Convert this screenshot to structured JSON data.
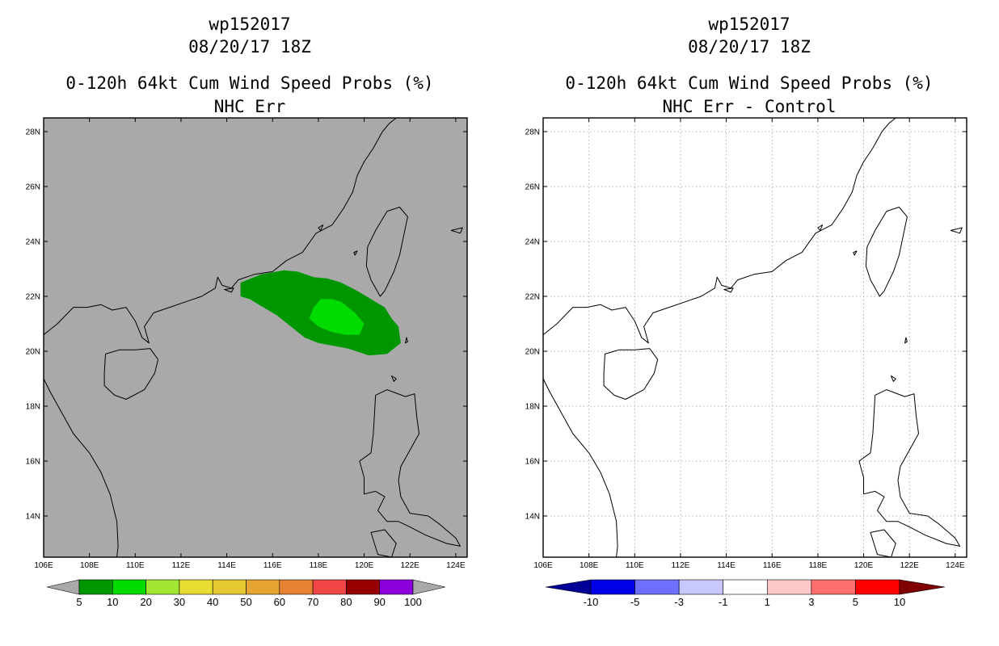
{
  "left": {
    "titles": [
      "wp152017",
      "08/20/17 18Z",
      "0-120h 64kt Cum Wind Speed Probs (%)",
      "NHC Err"
    ],
    "colorbar": {
      "colors": [
        "#009600",
        "#00dc00",
        "#a0e632",
        "#e6dc32",
        "#e6c832",
        "#e6a532",
        "#e68232",
        "#f04646",
        "#960000",
        "#8c00dc"
      ],
      "under_color": "#a9a9a9",
      "over_color": "#a9a9a9",
      "labels": [
        "5",
        "10",
        "20",
        "30",
        "40",
        "50",
        "60",
        "70",
        "80",
        "90",
        "100"
      ]
    }
  },
  "right": {
    "titles": [
      "wp152017",
      "08/20/17 18Z",
      "0-120h 64kt Cum Wind Speed Probs (%)",
      "NHC Err - Control"
    ],
    "colorbar": {
      "colors": [
        "#0000e6",
        "#6e6eff",
        "#c8c8ff",
        "#ffffff",
        "#ffc8c8",
        "#ff6e6e",
        "#ff0000"
      ],
      "under_color": "#000096",
      "over_color": "#800000",
      "labels": [
        "-10",
        "-5",
        "-3",
        "-1",
        "1",
        "3",
        "5",
        "10"
      ]
    }
  },
  "map": {
    "lon_min": 106,
    "lon_max": 124.5,
    "lat_min": 12.5,
    "lat_max": 28.5,
    "lon_ticks": [
      "106E",
      "108E",
      "110E",
      "112E",
      "114E",
      "116E",
      "118E",
      "120E",
      "122E",
      "124E"
    ],
    "lat_ticks": [
      "14N",
      "16N",
      "18N",
      "20N",
      "22N",
      "24N",
      "26N",
      "28N"
    ],
    "left_background": "#a9a9a9",
    "right_background": "#ffffff",
    "gridline_color": "#a0a0a0"
  },
  "probability_shading": {
    "outer_5pct_lonlat": [
      [
        114.6,
        22.5
      ],
      [
        115.5,
        22.8
      ],
      [
        116.5,
        22.95
      ],
      [
        117.1,
        22.9
      ],
      [
        117.8,
        22.7
      ],
      [
        118.4,
        22.65
      ],
      [
        119.0,
        22.5
      ],
      [
        119.7,
        22.2
      ],
      [
        120.3,
        21.9
      ],
      [
        120.9,
        21.6
      ],
      [
        121.2,
        21.2
      ],
      [
        121.5,
        20.9
      ],
      [
        121.6,
        20.3
      ],
      [
        121.0,
        19.9
      ],
      [
        120.2,
        19.85
      ],
      [
        119.3,
        20.1
      ],
      [
        118.0,
        20.3
      ],
      [
        117.4,
        20.5
      ],
      [
        116.8,
        20.9
      ],
      [
        116.2,
        21.3
      ],
      [
        115.6,
        21.6
      ],
      [
        115.0,
        21.9
      ],
      [
        114.6,
        22.0
      ]
    ],
    "inner_10pct_lonlat": [
      [
        118.1,
        21.9
      ],
      [
        118.6,
        21.9
      ],
      [
        119.0,
        21.8
      ],
      [
        119.6,
        21.4
      ],
      [
        120.0,
        21.0
      ],
      [
        119.8,
        20.6
      ],
      [
        119.2,
        20.6
      ],
      [
        118.6,
        20.7
      ],
      [
        118.0,
        20.9
      ],
      [
        117.6,
        21.2
      ],
      [
        117.8,
        21.6
      ]
    ]
  },
  "coastlines_lonlat": {
    "china_coast": [
      [
        106.0,
        20.6
      ],
      [
        106.6,
        21.0
      ],
      [
        107.3,
        21.6
      ],
      [
        107.9,
        21.6
      ],
      [
        108.5,
        21.7
      ],
      [
        109.0,
        21.5
      ],
      [
        109.6,
        21.6
      ],
      [
        110.0,
        21.1
      ],
      [
        110.3,
        20.5
      ],
      [
        110.6,
        20.3
      ],
      [
        110.4,
        20.9
      ],
      [
        110.8,
        21.4
      ],
      [
        111.5,
        21.6
      ],
      [
        112.2,
        21.8
      ],
      [
        112.9,
        22.0
      ],
      [
        113.5,
        22.3
      ],
      [
        113.6,
        22.7
      ],
      [
        113.8,
        22.4
      ],
      [
        114.2,
        22.3
      ],
      [
        114.5,
        22.6
      ],
      [
        115.2,
        22.8
      ],
      [
        116.0,
        22.9
      ],
      [
        116.6,
        23.3
      ],
      [
        117.3,
        23.6
      ],
      [
        117.9,
        24.3
      ],
      [
        118.6,
        24.6
      ],
      [
        119.1,
        25.2
      ],
      [
        119.5,
        25.8
      ],
      [
        119.7,
        26.4
      ],
      [
        120.0,
        26.9
      ],
      [
        120.4,
        27.4
      ],
      [
        120.8,
        28.0
      ],
      [
        121.1,
        28.3
      ],
      [
        121.4,
        28.5
      ]
    ],
    "hainan": [
      [
        108.65,
        19.2
      ],
      [
        108.7,
        19.9
      ],
      [
        109.3,
        20.05
      ],
      [
        110.0,
        20.05
      ],
      [
        110.65,
        20.1
      ],
      [
        111.0,
        19.7
      ],
      [
        110.85,
        19.2
      ],
      [
        110.4,
        18.6
      ],
      [
        109.6,
        18.25
      ],
      [
        109.1,
        18.4
      ],
      [
        108.65,
        18.75
      ],
      [
        108.65,
        19.2
      ]
    ],
    "taiwan": [
      [
        121.0,
        25.1
      ],
      [
        121.55,
        25.25
      ],
      [
        121.9,
        24.9
      ],
      [
        121.75,
        24.3
      ],
      [
        121.55,
        23.5
      ],
      [
        121.3,
        22.9
      ],
      [
        120.9,
        22.2
      ],
      [
        120.7,
        22.0
      ],
      [
        120.3,
        22.6
      ],
      [
        120.1,
        23.1
      ],
      [
        120.15,
        23.8
      ],
      [
        120.5,
        24.4
      ],
      [
        121.0,
        25.1
      ]
    ],
    "vietnam": [
      [
        106.0,
        19.0
      ],
      [
        106.3,
        18.5
      ],
      [
        106.7,
        17.9
      ],
      [
        107.3,
        17.0
      ],
      [
        108.0,
        16.3
      ],
      [
        108.5,
        15.6
      ],
      [
        108.9,
        14.8
      ],
      [
        109.2,
        13.8
      ],
      [
        109.25,
        12.9
      ],
      [
        109.2,
        12.5
      ]
    ],
    "luzon": [
      [
        120.5,
        18.4
      ],
      [
        121.0,
        18.6
      ],
      [
        121.8,
        18.35
      ],
      [
        122.2,
        18.45
      ],
      [
        122.3,
        17.6
      ],
      [
        122.4,
        17.0
      ],
      [
        122.0,
        16.4
      ],
      [
        121.6,
        15.8
      ],
      [
        121.5,
        15.3
      ],
      [
        121.6,
        14.7
      ],
      [
        122.0,
        14.1
      ],
      [
        122.8,
        14.0
      ],
      [
        123.3,
        13.7
      ],
      [
        124.0,
        13.2
      ],
      [
        124.2,
        12.9
      ],
      [
        123.6,
        13.0
      ],
      [
        122.7,
        13.3
      ],
      [
        122.0,
        13.6
      ],
      [
        121.5,
        13.8
      ],
      [
        121.0,
        13.8
      ],
      [
        120.6,
        14.2
      ],
      [
        120.9,
        14.7
      ],
      [
        120.5,
        14.9
      ],
      [
        120.0,
        14.8
      ],
      [
        120.0,
        15.4
      ],
      [
        119.8,
        16.0
      ],
      [
        120.3,
        16.3
      ],
      [
        120.4,
        17.0
      ],
      [
        120.5,
        18.4
      ]
    ],
    "luzon_strait_islands": [
      [
        121.85,
        20.5
      ],
      [
        121.9,
        20.35
      ],
      [
        121.8,
        20.3
      ],
      [
        121.85,
        20.5
      ]
    ],
    "babuyan_islands": [
      [
        121.2,
        19.1
      ],
      [
        121.4,
        19.0
      ],
      [
        121.3,
        18.9
      ],
      [
        121.2,
        19.1
      ]
    ],
    "mindoro": [
      [
        120.3,
        13.4
      ],
      [
        120.9,
        13.5
      ],
      [
        121.4,
        13.0
      ],
      [
        121.2,
        12.5
      ],
      [
        120.6,
        12.6
      ],
      [
        120.3,
        13.4
      ]
    ],
    "pescadores": [
      [
        119.55,
        23.6
      ],
      [
        119.7,
        23.65
      ],
      [
        119.6,
        23.5
      ],
      [
        119.55,
        23.6
      ]
    ],
    "yaeyama_islands": [
      [
        123.8,
        24.4
      ],
      [
        124.3,
        24.5
      ],
      [
        124.2,
        24.3
      ],
      [
        123.8,
        24.4
      ]
    ],
    "xiamen_island": [
      [
        118.0,
        24.5
      ],
      [
        118.2,
        24.6
      ],
      [
        118.1,
        24.4
      ],
      [
        118.0,
        24.5
      ]
    ],
    "hong_kong_island": [
      [
        113.9,
        22.25
      ],
      [
        114.3,
        22.3
      ],
      [
        114.2,
        22.15
      ],
      [
        113.9,
        22.25
      ]
    ]
  }
}
